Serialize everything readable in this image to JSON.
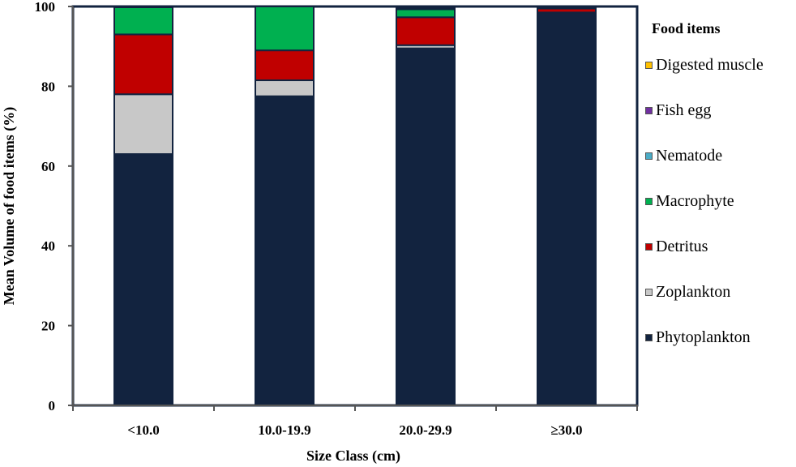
{
  "chart_data": {
    "type": "bar",
    "stacked": true,
    "xlabel": "Size Class (cm)",
    "ylabel": "Mean Volume of food items (%)",
    "ylim": [
      0,
      100
    ],
    "yticks": [
      0,
      20,
      40,
      60,
      80,
      100
    ],
    "categories": [
      "<10.0",
      "10.0-19.9",
      "20.0-29.9",
      "≥30.0"
    ],
    "legend_title": "Food items",
    "legend_position": "right",
    "series": [
      {
        "name": "Phytoplankton",
        "color": "#12233f",
        "values": [
          63,
          77.5,
          89.5,
          98.5
        ]
      },
      {
        "name": "Zoplankton",
        "color": "#c8c8c8",
        "values": [
          15,
          4,
          0.8,
          0
        ]
      },
      {
        "name": "Detritus",
        "color": "#c00000",
        "values": [
          15,
          7.5,
          7,
          1
        ]
      },
      {
        "name": "Macrophyte",
        "color": "#00b050",
        "values": [
          6.8,
          11,
          2,
          0
        ]
      },
      {
        "name": "Nematode",
        "color": "#4bacc6",
        "values": [
          0.1,
          0,
          0.2,
          0.25
        ]
      },
      {
        "name": "Fish egg",
        "color": "#7030a0",
        "values": [
          0.05,
          0,
          0.25,
          0.25
        ]
      },
      {
        "name": "Digested muscle",
        "color": "#ffc000",
        "values": [
          0.05,
          0,
          0.25,
          0
        ]
      }
    ]
  }
}
